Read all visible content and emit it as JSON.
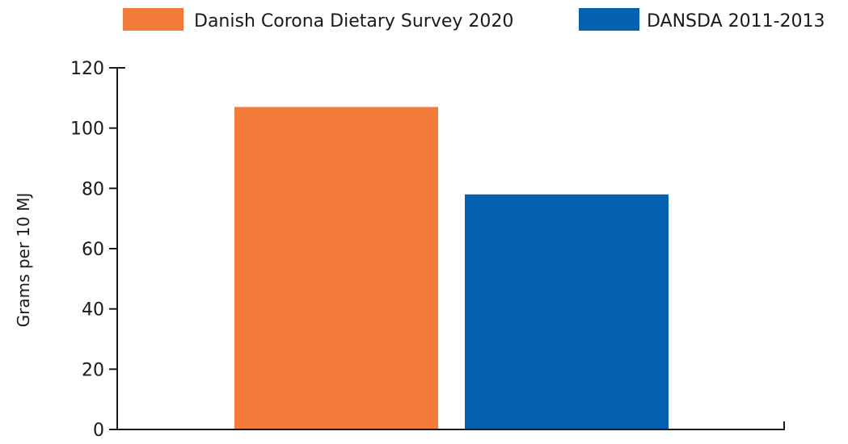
{
  "chart_data": {
    "type": "bar",
    "title": "",
    "xlabel": "",
    "ylabel": "Grams per 10 MJ",
    "ylim": [
      0,
      120
    ],
    "yticks": [
      0,
      20,
      40,
      60,
      80,
      100,
      120
    ],
    "grid": false,
    "legend_position": "top",
    "series": [
      {
        "name": "Danish Corona Dietary Survey 2020",
        "value": 107,
        "color": "#F27B3A"
      },
      {
        "name": "DANSDA 2011-2013",
        "value": 78,
        "color": "#0461B1"
      }
    ]
  }
}
